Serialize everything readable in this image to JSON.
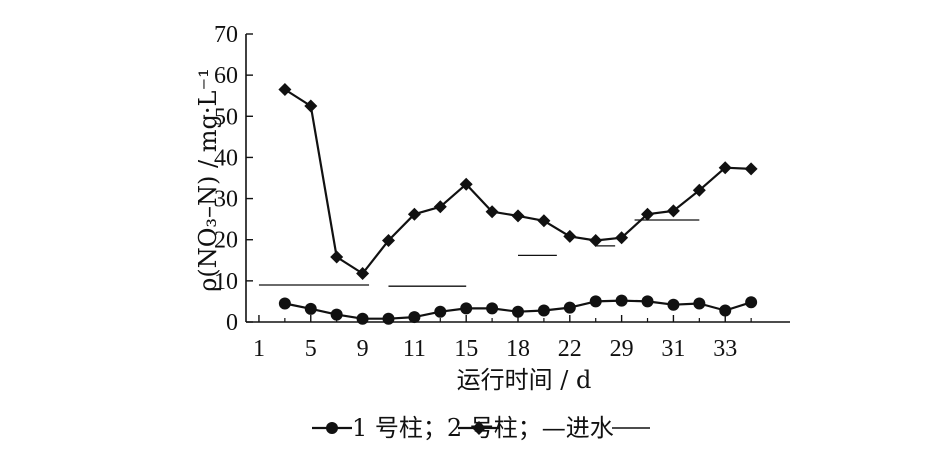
{
  "chart_data": {
    "type": "line",
    "title": "",
    "xlabel": "运行时间 / d",
    "ylabel": "ρ(NO₃–N) / mg·L⁻¹",
    "ylim": [
      0,
      70
    ],
    "yticks": [
      0,
      10,
      20,
      30,
      40,
      50,
      60,
      70
    ],
    "grid": false,
    "legend_text": "1 号柱；2 号柱；—进水",
    "x_tick_labels": [
      "1",
      "5",
      "9",
      "11",
      "15",
      "18",
      "22",
      "29",
      "31",
      "33"
    ],
    "x_points": [
      3,
      5,
      7,
      9,
      11,
      13,
      15,
      17,
      19,
      21,
      23,
      25,
      27,
      29,
      31,
      33,
      35,
      37,
      39,
      41
    ],
    "series": [
      {
        "name": "1 号柱",
        "marker": "circle",
        "color": "#111111",
        "values": [
          4.5,
          3.2,
          1.8,
          0.8,
          0.8,
          1.2,
          2.5,
          3.3,
          3.3,
          2.5,
          2.8,
          3.5,
          5.0,
          5.2,
          5.0,
          4.2,
          4.5,
          2.8,
          4.8,
          null
        ]
      },
      {
        "name": "2 号柱",
        "marker": "diamond",
        "color": "#111111",
        "values": [
          56.5,
          52.5,
          15.8,
          11.8,
          19.8,
          26.2,
          28.0,
          33.5,
          26.8,
          25.8,
          24.6,
          20.8,
          19.8,
          20.5,
          26.2,
          27.0,
          32.0,
          37.5,
          37.2,
          null
        ]
      }
    ],
    "influent": {
      "name": "进水",
      "segments": [
        {
          "x_start": 1,
          "x_end": 9.5,
          "value": 9.0
        },
        {
          "x_start": 11,
          "x_end": 17,
          "value": 8.7
        },
        {
          "x_start": 21,
          "x_end": 24,
          "value": 16.2
        },
        {
          "x_start": 27,
          "x_end": 28.5,
          "value": 18.5
        },
        {
          "x_start": 30,
          "x_end": 35,
          "value": 24.8
        }
      ]
    }
  }
}
